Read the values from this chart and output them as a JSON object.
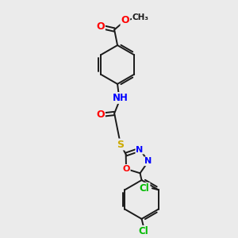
{
  "background_color": "#ebebeb",
  "bond_color": "#1a1a1a",
  "atom_colors": {
    "O": "#ff0000",
    "N": "#0000ff",
    "S": "#ccaa00",
    "Cl": "#00bb00",
    "C": "#1a1a1a"
  },
  "bond_lw": 1.4,
  "ring_r": 25,
  "pent_r": 16
}
